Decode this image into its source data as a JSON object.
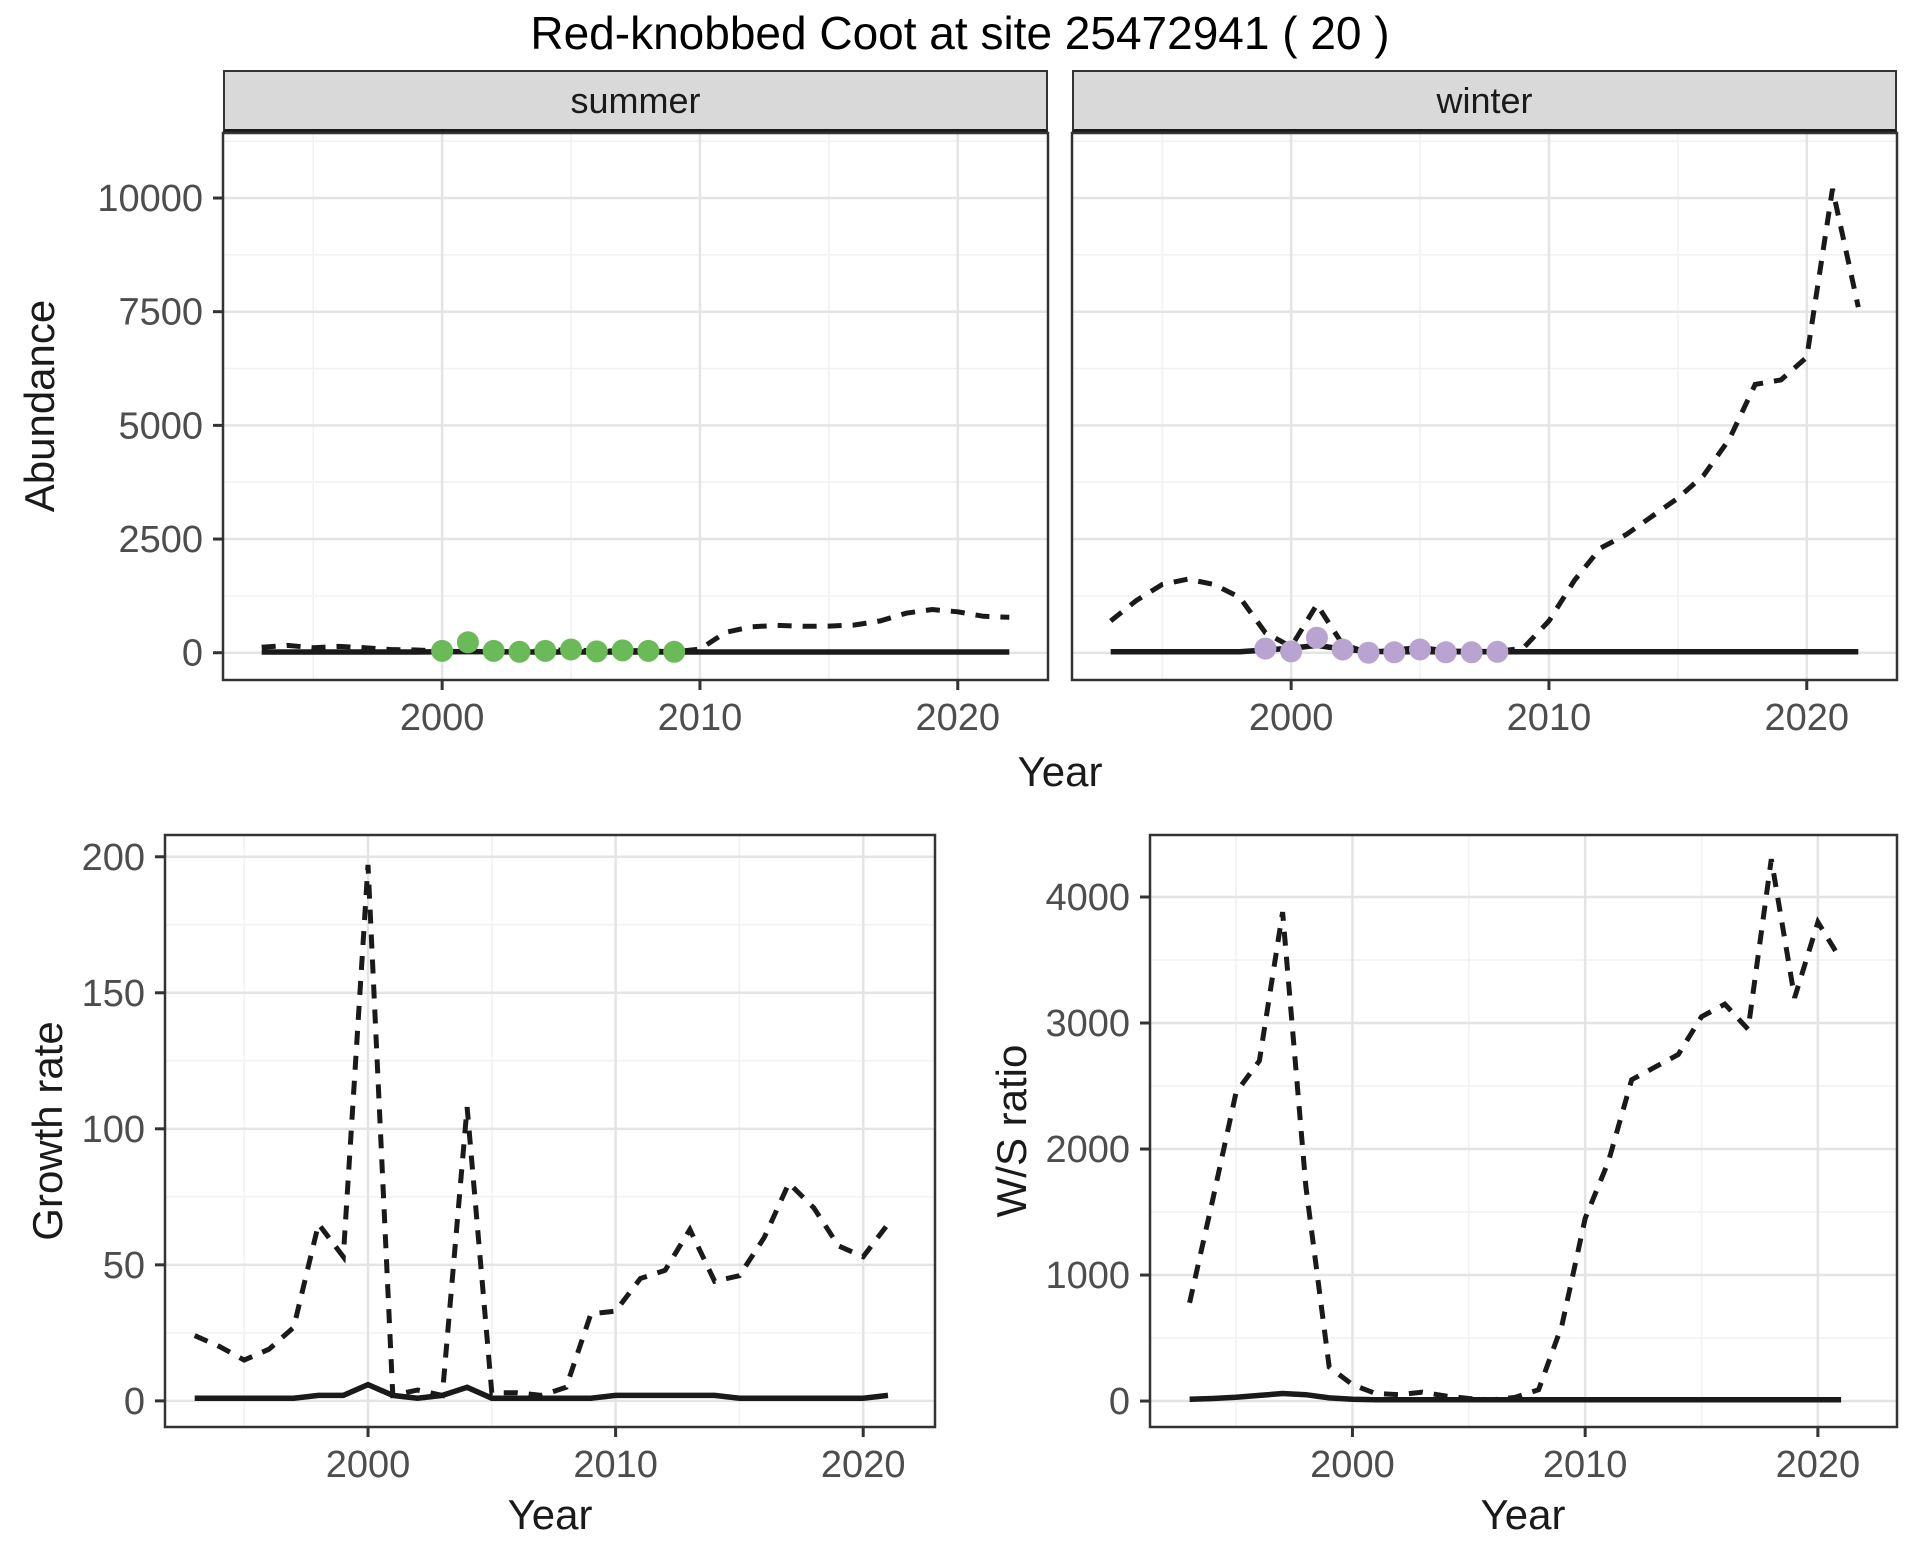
{
  "title": "Red-knobbed Coot at site 25472941 ( 20 )",
  "axis_shared": {
    "ylabel": "Abundance",
    "xlabel": "Year"
  },
  "colors": {
    "summer_point": "#6ABB58",
    "winter_point": "#B9A3D0",
    "line": "#1a1a1a",
    "strip_bg": "#D9D9D9",
    "grid_major": "#E4E4E4",
    "grid_minor": "#F2F2F2",
    "panel_border": "#333333",
    "tick_label": "#4D4D4D"
  },
  "chart_data": [
    {
      "id": "abundance_summer",
      "type": "line",
      "strip": "summer",
      "ylabel": "Abundance",
      "xlabel": "Year",
      "xlim": [
        1991.5,
        2023.5
      ],
      "ylim": [
        -600,
        11430
      ],
      "xticks": [
        2000,
        2010,
        2020
      ],
      "yticks": [
        0,
        2500,
        5000,
        7500,
        10000
      ],
      "show_y_axis": true,
      "years": [
        1993,
        1994,
        1995,
        1996,
        1997,
        1998,
        1999,
        2000,
        2001,
        2002,
        2003,
        2004,
        2005,
        2006,
        2007,
        2008,
        2009,
        2010,
        2011,
        2012,
        2013,
        2014,
        2015,
        2016,
        2017,
        2018,
        2019,
        2020,
        2021,
        2022
      ],
      "series": [
        {
          "name": "observed",
          "style": "dashed",
          "values": [
            120,
            160,
            110,
            140,
            110,
            70,
            60,
            40,
            230,
            40,
            20,
            40,
            70,
            30,
            50,
            40,
            20,
            80,
            450,
            570,
            600,
            580,
            585,
            610,
            700,
            870,
            950,
            900,
            800,
            780
          ]
        },
        {
          "name": "fitted",
          "style": "solid",
          "values": [
            15,
            15,
            15,
            15,
            15,
            15,
            15,
            20,
            25,
            20,
            15,
            15,
            15,
            15,
            15,
            15,
            15,
            15,
            15,
            15,
            15,
            15,
            15,
            15,
            15,
            15,
            15,
            15,
            15,
            15
          ]
        }
      ],
      "points": {
        "color": "#6ABB58",
        "x": [
          2000,
          2001,
          2002,
          2003,
          2004,
          2005,
          2006,
          2007,
          2008,
          2009
        ],
        "y": [
          40,
          230,
          40,
          20,
          40,
          70,
          30,
          50,
          40,
          20
        ]
      }
    },
    {
      "id": "abundance_winter",
      "type": "line",
      "strip": "winter",
      "ylabel": "Abundance",
      "xlabel": "Year",
      "xlim": [
        1991.5,
        2023.5
      ],
      "ylim": [
        -600,
        11430
      ],
      "xticks": [
        2000,
        2010,
        2020
      ],
      "yticks": [
        0,
        2500,
        5000,
        7500,
        10000
      ],
      "show_y_axis": false,
      "years": [
        1993,
        1994,
        1995,
        1996,
        1997,
        1998,
        1999,
        2000,
        2001,
        2002,
        2003,
        2004,
        2005,
        2006,
        2007,
        2008,
        2009,
        2010,
        2011,
        2012,
        2013,
        2014,
        2015,
        2016,
        2017,
        2018,
        2019,
        2020,
        2021,
        2022
      ],
      "series": [
        {
          "name": "observed",
          "style": "dashed",
          "values": [
            700,
            1150,
            1500,
            1620,
            1500,
            1220,
            440,
            130,
            1060,
            180,
            0,
            60,
            120,
            40,
            30,
            30,
            100,
            700,
            1600,
            2300,
            2600,
            3000,
            3400,
            3900,
            4700,
            5900,
            6000,
            6500,
            10200,
            7600
          ]
        },
        {
          "name": "fitted",
          "style": "solid",
          "values": [
            20,
            20,
            20,
            20,
            20,
            20,
            60,
            100,
            160,
            80,
            30,
            20,
            20,
            20,
            20,
            20,
            20,
            20,
            20,
            20,
            20,
            20,
            20,
            20,
            20,
            20,
            20,
            20,
            20,
            20
          ]
        }
      ],
      "points": {
        "color": "#B9A3D0",
        "x": [
          1999,
          2000,
          2001,
          2002,
          2003,
          2004,
          2005,
          2006,
          2007,
          2008
        ],
        "y": [
          90,
          30,
          330,
          70,
          0,
          10,
          70,
          10,
          10,
          20
        ]
      }
    },
    {
      "id": "growth_rate",
      "type": "line",
      "strip": null,
      "ylabel": "Growth rate",
      "xlabel": "Year",
      "xlim": [
        1991.8,
        2022.9
      ],
      "ylim": [
        -9.6,
        208
      ],
      "xticks": [
        2000,
        2010,
        2020
      ],
      "yticks": [
        0,
        50,
        100,
        150,
        200
      ],
      "show_y_axis": true,
      "years": [
        1993,
        1994,
        1995,
        1996,
        1997,
        1998,
        1999,
        2000,
        2001,
        2002,
        2003,
        2004,
        2005,
        2006,
        2007,
        2008,
        2009,
        2010,
        2011,
        2012,
        2013,
        2014,
        2015,
        2016,
        2017,
        2018,
        2019,
        2020,
        2021
      ],
      "series": [
        {
          "name": "observed",
          "style": "dashed",
          "values": [
            24,
            20,
            15,
            19,
            27,
            65,
            53,
            197,
            2,
            4,
            2,
            108,
            3,
            3,
            2,
            5,
            32,
            33,
            45,
            48,
            63,
            44,
            46,
            60,
            80,
            71,
            57,
            53,
            65
          ]
        },
        {
          "name": "fitted",
          "style": "solid",
          "values": [
            1,
            1,
            1,
            1,
            1,
            2,
            2,
            6,
            2,
            1,
            2,
            5,
            1,
            1,
            1,
            1,
            1,
            2,
            2,
            2,
            2,
            2,
            1,
            1,
            1,
            1,
            1,
            1,
            2
          ]
        }
      ],
      "points": null
    },
    {
      "id": "ws_ratio",
      "type": "line",
      "strip": null,
      "ylabel": "W/S ratio",
      "xlabel": "Year",
      "xlim": [
        1991.3,
        2023.4
      ],
      "ylim": [
        -206,
        4492
      ],
      "xticks": [
        2000,
        2010,
        2020
      ],
      "yticks": [
        0,
        1000,
        2000,
        3000,
        4000
      ],
      "show_y_axis": true,
      "years": [
        1993,
        1994,
        1995,
        1996,
        1997,
        1998,
        1999,
        2000,
        2001,
        2002,
        2003,
        2004,
        2005,
        2006,
        2007,
        2008,
        2009,
        2010,
        2011,
        2012,
        2013,
        2014,
        2015,
        2016,
        2017,
        2018,
        2019,
        2020,
        2021
      ],
      "series": [
        {
          "name": "observed",
          "style": "dashed",
          "values": [
            780,
            1600,
            2450,
            2700,
            3880,
            1700,
            270,
            130,
            60,
            50,
            70,
            40,
            20,
            10,
            30,
            90,
            600,
            1450,
            1900,
            2550,
            2650,
            2750,
            3050,
            3150,
            2950,
            4300,
            3200,
            3800,
            3500
          ]
        },
        {
          "name": "fitted",
          "style": "solid",
          "values": [
            15,
            20,
            30,
            45,
            60,
            50,
            25,
            15,
            10,
            10,
            10,
            10,
            10,
            10,
            10,
            10,
            10,
            10,
            10,
            10,
            10,
            10,
            10,
            10,
            10,
            10,
            10,
            10,
            10
          ]
        }
      ],
      "points": null
    }
  ]
}
